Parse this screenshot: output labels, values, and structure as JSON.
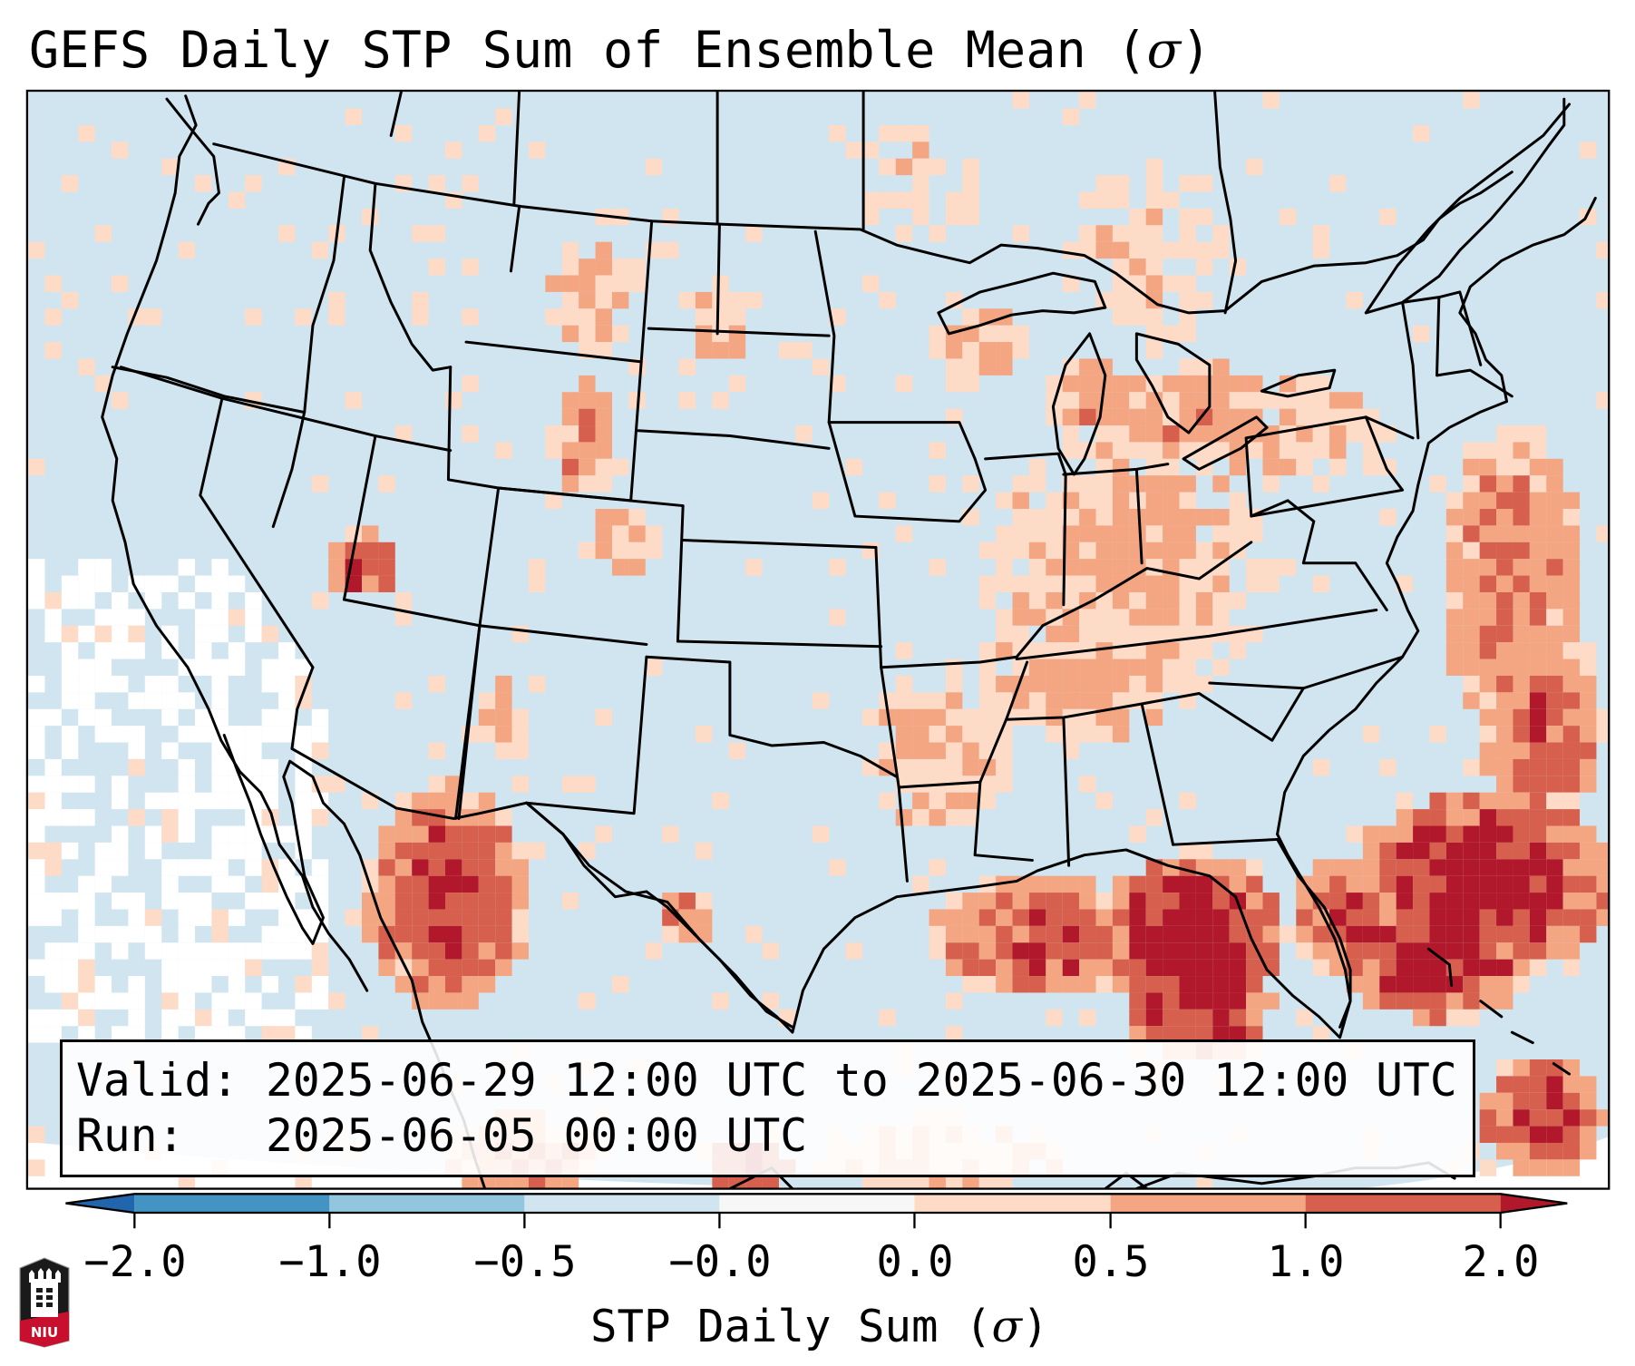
{
  "title": {
    "text": "GEFS Daily STP Sum of Ensemble Mean (",
    "sigma": "σ",
    "close": ")"
  },
  "info_box": {
    "valid_line": "Valid: 2025-06-29 12:00 UTC to 2025-06-30 12:00 UTC",
    "run_line": "Run:   2025-06-05 00:00 UTC"
  },
  "colorbar": {
    "label_text": "STP Daily Sum (",
    "label_sigma": "σ",
    "label_close": ")",
    "tick_labels": [
      "−2.0",
      "−1.0",
      "−0.5",
      "−0.0",
      "0.0",
      "0.5",
      "1.0",
      "2.0"
    ],
    "bins": [
      {
        "range": "< -2.0",
        "color": "#2166ac"
      },
      {
        "range": "-2.0 to -1.0",
        "color": "#4393c3"
      },
      {
        "range": "-1.0 to -0.5",
        "color": "#92c5de"
      },
      {
        "range": "-0.5 to -0.0",
        "color": "#d1e5f0"
      },
      {
        "range": "-0.0 to 0.0",
        "color": "#f7f7f7"
      },
      {
        "range": "0.0 to 0.5",
        "color": "#fddbc7"
      },
      {
        "range": "0.5 to 1.0",
        "color": "#f4a582"
      },
      {
        "range": "1.0 to 2.0",
        "color": "#d6604d"
      },
      {
        "range": "> 2.0",
        "color": "#b2182b"
      }
    ]
  },
  "map": {
    "background_color": "#d1e5f0",
    "missing_color": "#ffffff",
    "border_color": "#000000"
  },
  "logo": {
    "text": "NIU"
  }
}
